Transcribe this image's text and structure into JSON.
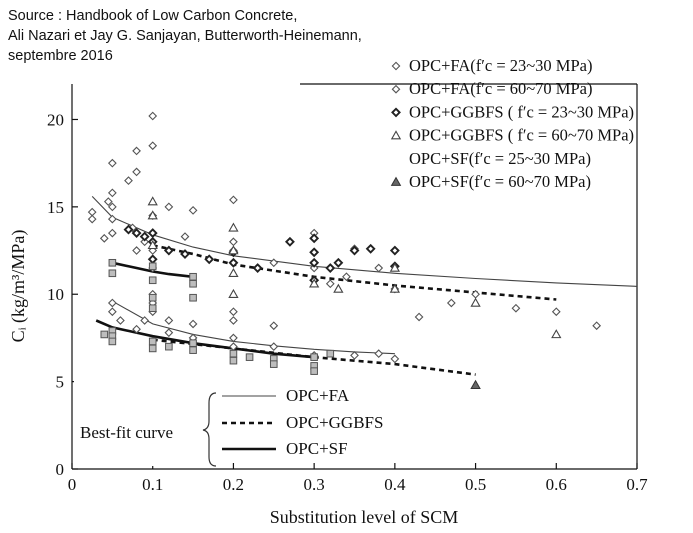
{
  "source": {
    "lines": [
      "Source : Handbook of Low Carbon Concrete,",
      "Ali Nazari et Jay G. Sanjayan, Butterworth-Heinemann,",
      "septembre 2016"
    ]
  },
  "chart_data": {
    "type": "scatter",
    "xlabel": "Substitution level of SCM",
    "ylabel": "Cᵢ (kg/m³/MPa)",
    "xlim": [
      0,
      0.7
    ],
    "ylim": [
      0,
      21
    ],
    "x_ticks": [
      "0",
      "0.1",
      "0.2",
      "0.3",
      "0.4",
      "0.5",
      "0.6",
      "0.7"
    ],
    "y_ticks": [
      "0",
      "5",
      "10",
      "15",
      "20"
    ],
    "grid": false,
    "legend_position": "top-right",
    "colors": {
      "marker_dark": "#555555",
      "marker_light": "#f2f2f2",
      "ink": "#111111"
    },
    "series": [
      {
        "name": "OPC+FA(f′c = 23~30 MPa)",
        "marker": "diamond",
        "points": [
          [
            0.025,
            14.7
          ],
          [
            0.025,
            14.3
          ],
          [
            0.04,
            13.2
          ],
          [
            0.045,
            15.3
          ],
          [
            0.05,
            17.5
          ],
          [
            0.05,
            15.8
          ],
          [
            0.05,
            15.0
          ],
          [
            0.05,
            14.3
          ],
          [
            0.05,
            13.5
          ],
          [
            0.07,
            16.5
          ],
          [
            0.075,
            13.8
          ],
          [
            0.08,
            18.2
          ],
          [
            0.08,
            17.0
          ],
          [
            0.08,
            12.5
          ],
          [
            0.09,
            13.0
          ],
          [
            0.1,
            20.2
          ],
          [
            0.1,
            18.5
          ],
          [
            0.1,
            14.5
          ],
          [
            0.1,
            13.5
          ],
          [
            0.1,
            12.5
          ],
          [
            0.1,
            12.0
          ],
          [
            0.1,
            11.5
          ],
          [
            0.12,
            15.0
          ],
          [
            0.14,
            13.3
          ],
          [
            0.15,
            14.8
          ],
          [
            0.2,
            15.4
          ],
          [
            0.2,
            13.0
          ],
          [
            0.2,
            12.5
          ],
          [
            0.25,
            11.8
          ],
          [
            0.3,
            13.5
          ],
          [
            0.3,
            11.5
          ],
          [
            0.32,
            10.6
          ],
          [
            0.34,
            11.0
          ],
          [
            0.35,
            12.6
          ],
          [
            0.38,
            11.5
          ],
          [
            0.4,
            12.5
          ],
          [
            0.4,
            10.3
          ],
          [
            0.43,
            8.7
          ],
          [
            0.47,
            9.5
          ],
          [
            0.5,
            10.0
          ],
          [
            0.55,
            9.2
          ],
          [
            0.6,
            9.0
          ],
          [
            0.65,
            8.2
          ]
        ]
      },
      {
        "name": "OPC+FA(f′c = 60~70 MPa)",
        "marker": "diamond",
        "points": [
          [
            0.05,
            9.5
          ],
          [
            0.05,
            9.0
          ],
          [
            0.06,
            8.5
          ],
          [
            0.08,
            8.0
          ],
          [
            0.09,
            8.5
          ],
          [
            0.1,
            10.0
          ],
          [
            0.1,
            9.5
          ],
          [
            0.1,
            9.0
          ],
          [
            0.12,
            8.5
          ],
          [
            0.12,
            7.8
          ],
          [
            0.15,
            8.3
          ],
          [
            0.15,
            7.5
          ],
          [
            0.2,
            9.0
          ],
          [
            0.2,
            8.5
          ],
          [
            0.2,
            7.5
          ],
          [
            0.2,
            7.0
          ],
          [
            0.25,
            8.2
          ],
          [
            0.25,
            7.0
          ],
          [
            0.3,
            6.5
          ],
          [
            0.35,
            6.5
          ],
          [
            0.38,
            6.6
          ],
          [
            0.4,
            6.3
          ]
        ]
      },
      {
        "name": "OPC+GGBFS ( f′c = 23~30 MPa)",
        "marker": "diamond-bold",
        "points": [
          [
            0.07,
            13.7
          ],
          [
            0.08,
            13.5
          ],
          [
            0.09,
            13.3
          ],
          [
            0.1,
            13.5
          ],
          [
            0.1,
            13.0
          ],
          [
            0.1,
            12.0
          ],
          [
            0.12,
            12.5
          ],
          [
            0.14,
            12.3
          ],
          [
            0.17,
            12.0
          ],
          [
            0.2,
            12.4
          ],
          [
            0.2,
            11.8
          ],
          [
            0.23,
            11.5
          ],
          [
            0.27,
            13.0
          ],
          [
            0.3,
            13.2
          ],
          [
            0.3,
            12.4
          ],
          [
            0.3,
            11.8
          ],
          [
            0.3,
            10.8
          ],
          [
            0.32,
            11.5
          ],
          [
            0.33,
            11.8
          ],
          [
            0.35,
            12.5
          ],
          [
            0.37,
            12.6
          ],
          [
            0.4,
            12.5
          ],
          [
            0.4,
            11.6
          ]
        ]
      },
      {
        "name": "OPC+GGBFS ( f′c = 60~70 MPa)",
        "marker": "triangle",
        "points": [
          [
            0.1,
            15.3
          ],
          [
            0.1,
            14.5
          ],
          [
            0.1,
            12.8
          ],
          [
            0.2,
            13.8
          ],
          [
            0.2,
            12.5
          ],
          [
            0.2,
            11.2
          ],
          [
            0.2,
            10.0
          ],
          [
            0.3,
            10.6
          ],
          [
            0.33,
            10.3
          ],
          [
            0.4,
            11.5
          ],
          [
            0.4,
            10.3
          ],
          [
            0.5,
            9.5
          ],
          [
            0.6,
            7.7
          ]
        ]
      },
      {
        "name": "OPC+SF(f′c = 25~30 MPa)",
        "marker": "square",
        "points": [
          [
            0.05,
            11.8
          ],
          [
            0.05,
            11.2
          ],
          [
            0.1,
            11.6
          ],
          [
            0.1,
            10.8
          ],
          [
            0.1,
            9.8
          ],
          [
            0.1,
            9.2
          ],
          [
            0.15,
            10.6
          ],
          [
            0.15,
            9.8
          ],
          [
            0.15,
            11.0
          ],
          [
            0.05,
            7.9
          ],
          [
            0.05,
            7.6
          ],
          [
            0.05,
            7.3
          ],
          [
            0.04,
            7.7
          ],
          [
            0.1,
            7.3
          ],
          [
            0.1,
            6.9
          ],
          [
            0.12,
            7.0
          ],
          [
            0.15,
            7.2
          ],
          [
            0.15,
            6.8
          ],
          [
            0.2,
            6.6
          ],
          [
            0.2,
            6.2
          ],
          [
            0.22,
            6.4
          ],
          [
            0.25,
            6.3
          ],
          [
            0.25,
            6.0
          ],
          [
            0.3,
            5.9
          ],
          [
            0.3,
            5.6
          ],
          [
            0.3,
            6.4
          ],
          [
            0.32,
            6.6
          ]
        ]
      },
      {
        "name": "OPC+SF(f′c = 60~70 MPa)",
        "marker": "triangle-filled",
        "points": [
          [
            0.5,
            4.8
          ]
        ]
      }
    ],
    "best_fit": {
      "label": "Best-fit curve",
      "items": [
        {
          "name": "OPC+FA",
          "style": "thin-solid",
          "curves": [
            {
              "x": [
                0.025,
                0.05,
                0.1,
                0.15,
                0.2,
                0.3,
                0.4,
                0.5,
                0.6,
                0.7
              ],
              "y": [
                15.6,
                14.4,
                13.4,
                12.7,
                12.2,
                11.6,
                11.2,
                10.9,
                10.65,
                10.45
              ]
            },
            {
              "x": [
                0.05,
                0.1,
                0.15,
                0.2,
                0.25,
                0.3,
                0.35,
                0.4
              ],
              "y": [
                9.6,
                8.3,
                7.7,
                7.3,
                7.05,
                6.85,
                6.7,
                6.6
              ]
            }
          ]
        },
        {
          "name": "OPC+GGBFS",
          "style": "dotted",
          "curves": [
            {
              "x": [
                0.1,
                0.15,
                0.2,
                0.3,
                0.4,
                0.5,
                0.6
              ],
              "y": [
                12.8,
                12.3,
                11.7,
                11.0,
                10.5,
                10.1,
                9.7
              ]
            },
            {
              "x": [
                0.1,
                0.2,
                0.3,
                0.4,
                0.5
              ],
              "y": [
                7.4,
                6.9,
                6.4,
                6.0,
                5.4
              ]
            }
          ]
        },
        {
          "name": "OPC+SF",
          "style": "thick-solid",
          "curves": [
            {
              "x": [
                0.05,
                0.08,
                0.1,
                0.12,
                0.15
              ],
              "y": [
                11.8,
                11.5,
                11.3,
                11.15,
                11.0
              ]
            },
            {
              "x": [
                0.03,
                0.05,
                0.1,
                0.15,
                0.2,
                0.25,
                0.3
              ],
              "y": [
                8.5,
                8.1,
                7.6,
                7.2,
                6.9,
                6.6,
                6.4
              ]
            }
          ]
        }
      ]
    }
  }
}
